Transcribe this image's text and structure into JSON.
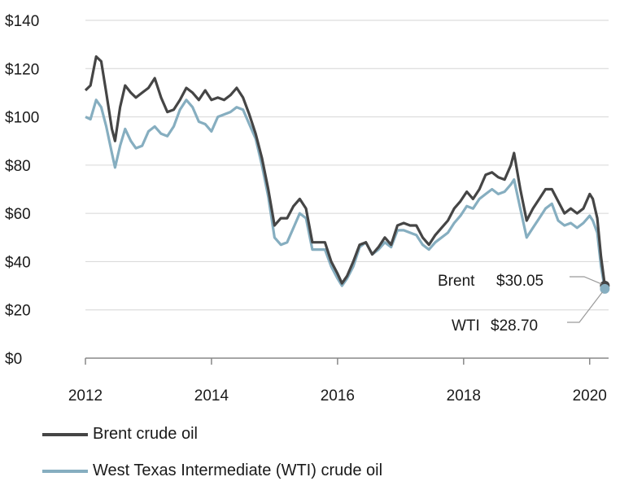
{
  "chart_data": {
    "type": "line",
    "title": "",
    "xlabel": "",
    "ylabel": "",
    "ylim": [
      0,
      140
    ],
    "xlim": [
      2012,
      2020.3
    ],
    "yticks": [
      0,
      20,
      40,
      60,
      80,
      100,
      120,
      140
    ],
    "ytick_labels": [
      "$0",
      "$20",
      "$40",
      "$60",
      "$80",
      "$100",
      "$120",
      "$140"
    ],
    "xticks": [
      2012,
      2014,
      2016,
      2018,
      2020
    ],
    "xtick_labels": [
      "2012",
      "2014",
      "2016",
      "2018",
      "2020"
    ],
    "series": [
      {
        "name": "Brent crude oil",
        "color": "#454545",
        "x": [
          2012.0,
          2012.08,
          2012.17,
          2012.25,
          2012.33,
          2012.42,
          2012.47,
          2012.55,
          2012.63,
          2012.72,
          2012.8,
          2012.9,
          2013.0,
          2013.1,
          2013.2,
          2013.3,
          2013.4,
          2013.5,
          2013.6,
          2013.7,
          2013.8,
          2013.9,
          2014.0,
          2014.1,
          2014.2,
          2014.3,
          2014.4,
          2014.5,
          2014.6,
          2014.7,
          2014.8,
          2014.9,
          2015.0,
          2015.1,
          2015.2,
          2015.3,
          2015.4,
          2015.5,
          2015.6,
          2015.7,
          2015.8,
          2015.9,
          2016.0,
          2016.07,
          2016.15,
          2016.25,
          2016.35,
          2016.45,
          2016.55,
          2016.65,
          2016.75,
          2016.85,
          2016.95,
          2017.05,
          2017.15,
          2017.25,
          2017.35,
          2017.45,
          2017.55,
          2017.65,
          2017.75,
          2017.85,
          2017.95,
          2018.05,
          2018.15,
          2018.25,
          2018.35,
          2018.45,
          2018.55,
          2018.65,
          2018.75,
          2018.8,
          2018.9,
          2019.0,
          2019.1,
          2019.2,
          2019.3,
          2019.4,
          2019.5,
          2019.6,
          2019.7,
          2019.8,
          2019.9,
          2020.0,
          2020.05,
          2020.12,
          2020.18,
          2020.24
        ],
        "y": [
          111,
          113,
          125,
          123,
          110,
          95,
          90,
          104,
          113,
          110,
          108,
          110,
          112,
          116,
          108,
          102,
          103,
          107,
          112,
          110,
          107,
          111,
          107,
          108,
          107,
          109,
          112,
          108,
          101,
          93,
          83,
          70,
          55,
          58,
          58,
          63,
          66,
          62,
          48,
          48,
          48,
          40,
          35,
          31,
          34,
          40,
          47,
          48,
          43,
          46,
          50,
          47,
          55,
          56,
          55,
          55,
          50,
          47,
          51,
          54,
          57,
          62,
          65,
          69,
          66,
          70,
          76,
          77,
          75,
          74,
          80,
          85,
          70,
          57,
          62,
          66,
          70,
          70,
          65,
          60,
          62,
          60,
          62,
          68,
          66,
          58,
          42,
          30.05
        ]
      },
      {
        "name": "West Texas Intermediate (WTI) crude oil",
        "color": "#86aec0",
        "x": [
          2012.0,
          2012.08,
          2012.17,
          2012.25,
          2012.33,
          2012.42,
          2012.47,
          2012.55,
          2012.63,
          2012.72,
          2012.8,
          2012.9,
          2013.0,
          2013.1,
          2013.2,
          2013.3,
          2013.4,
          2013.5,
          2013.6,
          2013.7,
          2013.8,
          2013.9,
          2014.0,
          2014.1,
          2014.2,
          2014.3,
          2014.4,
          2014.5,
          2014.6,
          2014.7,
          2014.8,
          2014.9,
          2015.0,
          2015.1,
          2015.2,
          2015.3,
          2015.4,
          2015.5,
          2015.6,
          2015.7,
          2015.8,
          2015.9,
          2016.0,
          2016.07,
          2016.15,
          2016.25,
          2016.35,
          2016.45,
          2016.55,
          2016.65,
          2016.75,
          2016.85,
          2016.95,
          2017.05,
          2017.15,
          2017.25,
          2017.35,
          2017.45,
          2017.55,
          2017.65,
          2017.75,
          2017.85,
          2017.95,
          2018.05,
          2018.15,
          2018.25,
          2018.35,
          2018.45,
          2018.55,
          2018.65,
          2018.75,
          2018.8,
          2018.9,
          2019.0,
          2019.1,
          2019.2,
          2019.3,
          2019.4,
          2019.5,
          2019.6,
          2019.7,
          2019.8,
          2019.9,
          2020.0,
          2020.05,
          2020.12,
          2020.18,
          2020.24
        ],
        "y": [
          100,
          99,
          107,
          104,
          96,
          85,
          79,
          88,
          95,
          90,
          87,
          88,
          94,
          96,
          93,
          92,
          96,
          103,
          107,
          104,
          98,
          97,
          94,
          100,
          101,
          102,
          104,
          103,
          97,
          91,
          80,
          67,
          50,
          47,
          48,
          54,
          60,
          58,
          45,
          45,
          45,
          38,
          33,
          30,
          33,
          38,
          46,
          48,
          43,
          45,
          48,
          46,
          53,
          53,
          52,
          51,
          47,
          45,
          48,
          50,
          52,
          56,
          59,
          63,
          62,
          66,
          68,
          70,
          68,
          69,
          72,
          74,
          62,
          50,
          54,
          58,
          62,
          64,
          57,
          55,
          56,
          54,
          56,
          59,
          57,
          52,
          38,
          28.7
        ]
      }
    ],
    "annotations": [
      {
        "label": "Brent",
        "value": "$30.05"
      },
      {
        "label": "WTI",
        "value": "$28.70"
      }
    ],
    "legend": "bottom-left"
  }
}
